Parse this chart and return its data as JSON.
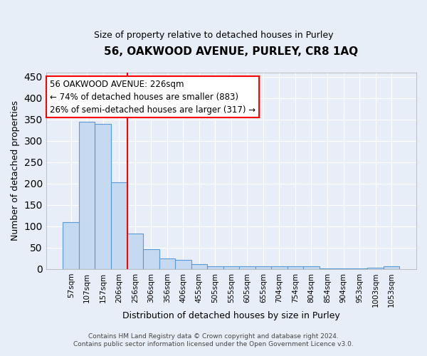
{
  "title1": "56, OAKWOOD AVENUE, PURLEY, CR8 1AQ",
  "title2": "Size of property relative to detached houses in Purley",
  "xlabel": "Distribution of detached houses by size in Purley",
  "ylabel": "Number of detached properties",
  "bar_labels": [
    "57sqm",
    "107sqm",
    "157sqm",
    "206sqm",
    "256sqm",
    "306sqm",
    "356sqm",
    "406sqm",
    "455sqm",
    "505sqm",
    "555sqm",
    "605sqm",
    "655sqm",
    "704sqm",
    "754sqm",
    "804sqm",
    "854sqm",
    "904sqm",
    "953sqm",
    "1003sqm",
    "1053sqm"
  ],
  "bar_values": [
    110,
    345,
    340,
    203,
    84,
    46,
    25,
    22,
    11,
    6,
    6,
    6,
    6,
    6,
    6,
    7,
    2,
    2,
    2,
    3,
    7
  ],
  "bar_color": "#c5d9f0",
  "bar_edge_color": "#5b9bd5",
  "red_line_x": 3.5,
  "annotation_title": "56 OAKWOOD AVENUE: 226sqm",
  "annotation_line1": "← 74% of detached houses are smaller (883)",
  "annotation_line2": "26% of semi-detached houses are larger (317) →",
  "ylim": [
    0,
    460
  ],
  "yticks": [
    0,
    50,
    100,
    150,
    200,
    250,
    300,
    350,
    400,
    450
  ],
  "footer1": "Contains HM Land Registry data © Crown copyright and database right 2024.",
  "footer2": "Contains public sector information licensed under the Open Government Licence v3.0.",
  "bg_color": "#e8eef7",
  "plot_bg_color": "#e8eef7",
  "grid_color": "#ffffff"
}
